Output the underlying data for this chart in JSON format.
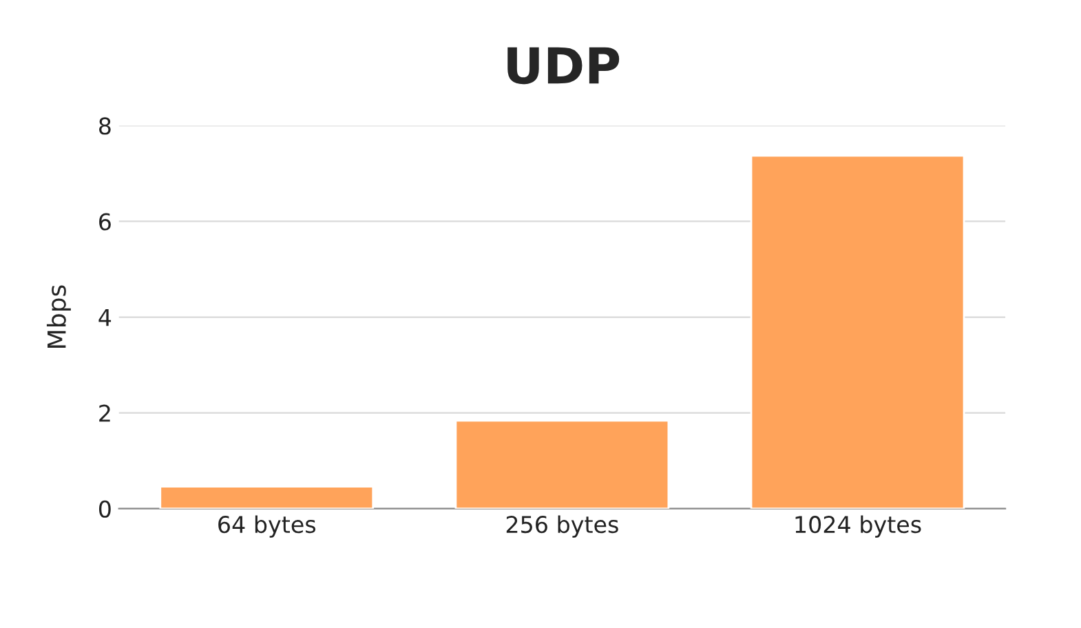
{
  "chart_data": {
    "type": "bar",
    "title": "UDP",
    "ylabel": "Mbps",
    "categories": [
      "64 bytes",
      "256 bytes",
      "1024 bytes"
    ],
    "values": [
      0.46,
      1.84,
      7.37
    ],
    "color": "#ffa35a",
    "ylim": [
      0,
      8
    ],
    "yticks": [
      0,
      2,
      4,
      6,
      8
    ],
    "grid": "y",
    "legend": false
  }
}
